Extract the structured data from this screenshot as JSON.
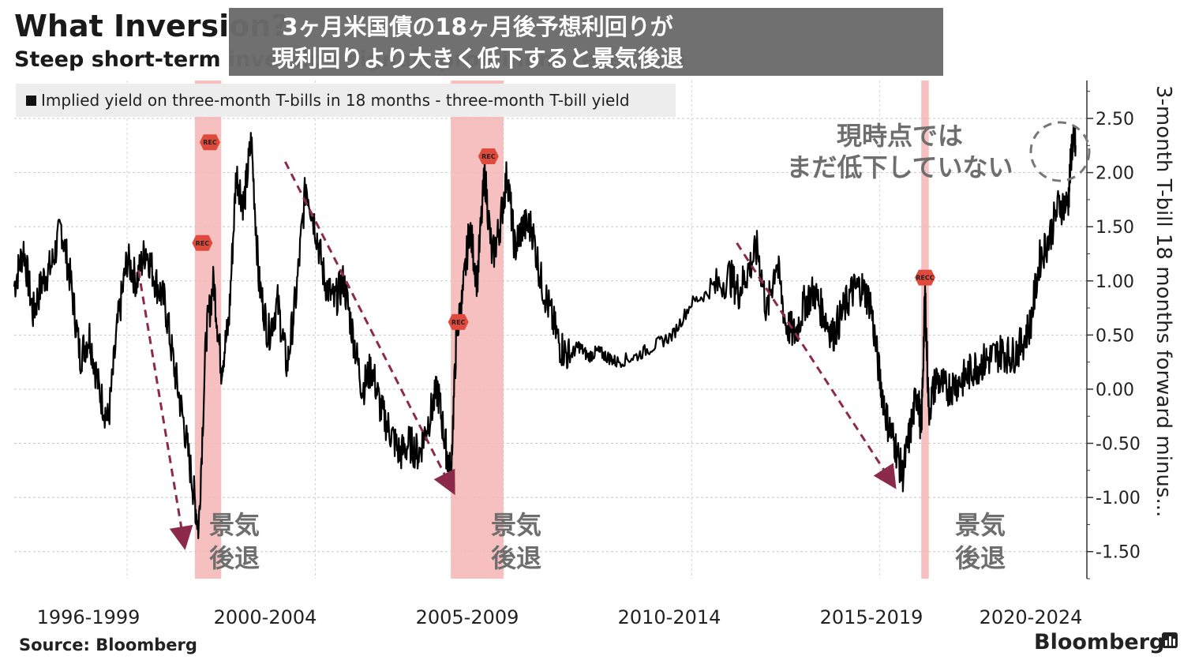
{
  "header": {
    "title": "What Inversion?",
    "subtitle": "Steep short-term inversion signals prominent recession",
    "overlay_line1": "3ヶ月米国債の18ヶ月後予想利回りが",
    "overlay_line2": "現利回りより大きく低下すると景気後退"
  },
  "legend": {
    "label": "Implied yield on three-month T-bills in 18 months - three-month T-bill yield"
  },
  "annotations": {
    "now_line1": "現時点では",
    "now_line2": "まだ低下していない",
    "recession_line1": "景気",
    "recession_line2": "後退"
  },
  "recession_markers": [
    "REC",
    "REC",
    "REC",
    "REC",
    "RECC"
  ],
  "footer": {
    "source": "Source: Bloomberg",
    "brand": "Bloomberg"
  },
  "colors": {
    "line": "#000000",
    "recession_band": "#f4b5b5",
    "arrow": "#8b2a4a",
    "marker": "#e04a3c",
    "overlay": "#6b6b6b"
  },
  "chart_data": {
    "type": "line",
    "title": "What Inversion?",
    "subtitle": "Steep short-term inversion signals prominent recession",
    "ylabel": "3-month T-bill 18 months forward minus...",
    "ylim": [
      -1.75,
      2.85
    ],
    "y_ticks": [
      2.5,
      2.0,
      1.5,
      1.0,
      0.5,
      0.0,
      -0.5,
      -1.0,
      -1.5
    ],
    "y_tick_labels": [
      "2.50",
      "2.00",
      "1.50",
      "1.00",
      "0.50",
      "0.00",
      "-0.50",
      "-1.00",
      "-1.50"
    ],
    "x_range": [
      1996.0,
      2024.5
    ],
    "x_tick_labels": [
      "1996-1999",
      "2000-2004",
      "2005-2009",
      "2010-2014",
      "2015-2019",
      "2020-2024"
    ],
    "grid": true,
    "legend_position": "top-left",
    "recessions": [
      [
        2000.8,
        2001.5
      ],
      [
        2007.6,
        2009.0
      ],
      [
        2020.1,
        2020.3
      ]
    ],
    "arrows": [
      [
        1999.3,
        1.1,
        2000.5,
        -1.4
      ],
      [
        2003.2,
        2.1,
        2007.6,
        -0.9
      ],
      [
        2015.2,
        1.35,
        2019.3,
        -0.85
      ]
    ],
    "series": [
      {
        "name": "Implied yield on three-month T-bills in 18 months - three-month T-bill yield",
        "x": [
          1996.0,
          1996.25,
          1996.5,
          1996.75,
          1997.0,
          1997.25,
          1997.5,
          1997.75,
          1998.0,
          1998.25,
          1998.5,
          1998.75,
          1999.0,
          1999.25,
          1999.5,
          1999.75,
          2000.0,
          2000.25,
          2000.5,
          2000.75,
          2000.9,
          2001.1,
          2001.3,
          2001.5,
          2001.7,
          2001.9,
          2002.1,
          2002.3,
          2002.5,
          2002.75,
          2003.0,
          2003.25,
          2003.5,
          2003.75,
          2004.0,
          2004.25,
          2004.5,
          2004.75,
          2005.0,
          2005.25,
          2005.5,
          2005.75,
          2006.0,
          2006.25,
          2006.5,
          2006.75,
          2007.0,
          2007.25,
          2007.45,
          2007.6,
          2007.75,
          2007.9,
          2008.1,
          2008.3,
          2008.5,
          2008.7,
          2008.9,
          2009.1,
          2009.3,
          2009.5,
          2009.75,
          2010.0,
          2010.25,
          2010.5,
          2010.75,
          2011.0,
          2011.25,
          2011.5,
          2011.75,
          2012.0,
          2012.5,
          2013.0,
          2013.5,
          2014.0,
          2014.5,
          2015.0,
          2015.25,
          2015.5,
          2015.75,
          2016.0,
          2016.25,
          2016.5,
          2016.75,
          2017.0,
          2017.25,
          2017.5,
          2017.75,
          2018.0,
          2018.25,
          2018.5,
          2018.75,
          2019.0,
          2019.2,
          2019.4,
          2019.6,
          2019.8,
          2020.0,
          2020.1,
          2020.2,
          2020.3,
          2020.5,
          2020.75,
          2021.0,
          2021.25,
          2021.5,
          2021.75,
          2022.0,
          2022.25,
          2022.5,
          2022.75,
          2023.0,
          2023.25,
          2023.5,
          2023.75,
          2024.0,
          2024.1,
          2024.2
        ],
        "values": [
          0.95,
          1.3,
          0.7,
          1.0,
          1.15,
          1.5,
          1.0,
          0.3,
          0.5,
          0.0,
          -0.3,
          0.6,
          1.2,
          1.0,
          1.3,
          1.0,
          0.8,
          0.2,
          -0.3,
          -0.9,
          -1.3,
          0.5,
          1.0,
          0.2,
          0.6,
          2.0,
          1.7,
          2.3,
          1.0,
          0.5,
          0.8,
          0.2,
          0.9,
          1.9,
          1.5,
          1.0,
          0.8,
          1.0,
          0.5,
          0.0,
          0.2,
          -0.2,
          -0.4,
          -0.6,
          -0.5,
          -0.6,
          -0.3,
          0.0,
          -0.5,
          -0.8,
          0.5,
          0.8,
          1.5,
          1.0,
          2.0,
          1.2,
          1.5,
          2.0,
          1.3,
          1.5,
          1.5,
          1.0,
          0.7,
          0.4,
          0.3,
          0.4,
          0.3,
          0.35,
          0.3,
          0.25,
          0.3,
          0.4,
          0.5,
          0.8,
          0.9,
          1.05,
          0.9,
          1.1,
          1.3,
          0.7,
          1.2,
          0.6,
          0.5,
          0.8,
          0.9,
          0.7,
          0.5,
          0.7,
          0.9,
          0.95,
          0.8,
          0.1,
          -0.3,
          -0.5,
          -0.8,
          -0.4,
          0.0,
          -0.4,
          0.9,
          -0.2,
          0.1,
          0.0,
          0.05,
          0.1,
          0.2,
          0.25,
          0.3,
          0.35,
          0.3,
          0.4,
          0.6,
          1.2,
          1.4,
          1.7,
          1.7,
          2.25,
          2.25
        ]
      }
    ]
  }
}
